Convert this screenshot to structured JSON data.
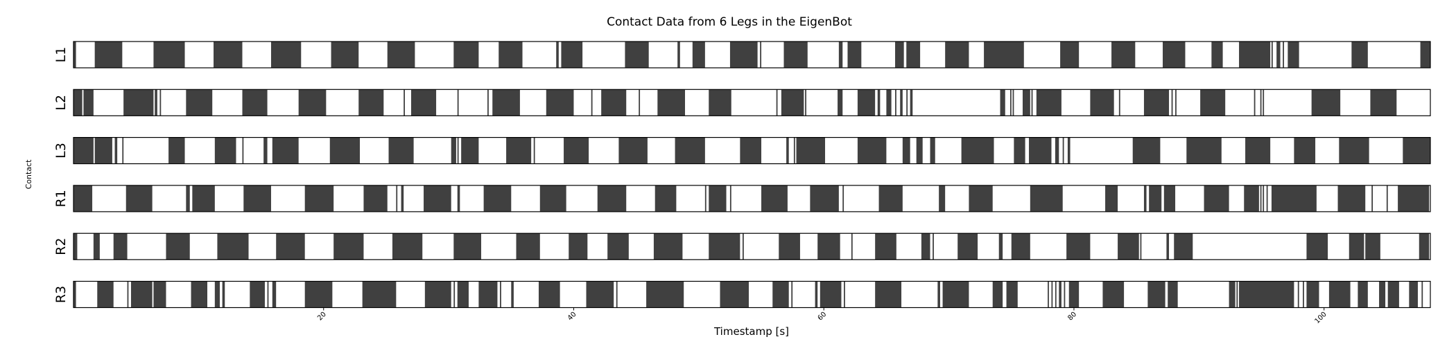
{
  "chart_data": {
    "type": "timeline",
    "title": "Contact Data from 6 Legs in the EigenBot",
    "xlabel": "Timestamp [s]",
    "ylabel": "Contact",
    "xlim": [
      0,
      108.5
    ],
    "xticks": [
      20,
      40,
      60,
      80,
      100
    ],
    "contact_color": "#404040",
    "series": [
      {
        "name": "L1",
        "contact_intervals": [
          [
            0,
            0.2
          ],
          [
            1.7,
            3.9
          ],
          [
            6.4,
            8.9
          ],
          [
            11.2,
            13.5
          ],
          [
            15.8,
            18.2
          ],
          [
            20.6,
            22.8
          ],
          [
            25.1,
            27.3
          ],
          [
            30.4,
            32.4
          ],
          [
            34.0,
            35.9
          ],
          [
            38.6,
            38.8
          ],
          [
            39.0,
            40.7
          ],
          [
            44.1,
            46.0
          ],
          [
            48.3,
            48.5
          ],
          [
            49.5,
            50.5
          ],
          [
            52.5,
            54.7
          ],
          [
            54.9,
            55.0
          ],
          [
            56.8,
            58.7
          ],
          [
            61.2,
            61.5
          ],
          [
            61.9,
            63.0
          ],
          [
            65.7,
            66.4
          ],
          [
            66.6,
            67.7
          ],
          [
            69.7,
            71.6
          ],
          [
            72.8,
            76.0
          ],
          [
            78.9,
            80.4
          ],
          [
            83.0,
            84.9
          ],
          [
            87.1,
            88.9
          ],
          [
            91.0,
            91.9
          ],
          [
            93.2,
            95.7
          ],
          [
            95.8,
            95.9
          ],
          [
            96.2,
            96.5
          ],
          [
            96.7,
            96.8
          ],
          [
            97.1,
            98.0
          ],
          [
            102.2,
            103.5
          ],
          [
            107.7,
            108.5
          ]
        ]
      },
      {
        "name": "L2",
        "contact_intervals": [
          [
            0,
            0.7
          ],
          [
            0.8,
            1.6
          ],
          [
            4.0,
            6.4
          ],
          [
            6.5,
            6.7
          ],
          [
            6.9,
            7.0
          ],
          [
            9.0,
            11.1
          ],
          [
            13.5,
            15.5
          ],
          [
            18.0,
            20.2
          ],
          [
            22.8,
            24.8
          ],
          [
            26.4,
            26.5
          ],
          [
            27.0,
            29.0
          ],
          [
            30.7,
            30.8
          ],
          [
            33.1,
            33.2
          ],
          [
            33.5,
            35.7
          ],
          [
            37.8,
            40.0
          ],
          [
            41.4,
            41.5
          ],
          [
            42.2,
            44.2
          ],
          [
            45.2,
            45.3
          ],
          [
            46.7,
            48.9
          ],
          [
            50.8,
            52.6
          ],
          [
            56.2,
            56.3
          ],
          [
            56.6,
            58.4
          ],
          [
            58.5,
            58.6
          ],
          [
            61.1,
            61.5
          ],
          [
            62.7,
            64.1
          ],
          [
            64.3,
            64.5
          ],
          [
            65.0,
            65.4
          ],
          [
            65.7,
            65.8
          ],
          [
            66.1,
            66.3
          ],
          [
            66.9,
            67.1
          ],
          [
            66.6,
            66.7
          ],
          [
            74.1,
            74.5
          ],
          [
            74.9,
            75.0
          ],
          [
            75.1,
            75.2
          ],
          [
            75.9,
            76.5
          ],
          [
            76.6,
            76.7
          ],
          [
            77.0,
            79.0
          ],
          [
            81.3,
            83.2
          ],
          [
            83.6,
            83.7
          ],
          [
            85.6,
            87.6
          ],
          [
            87.8,
            87.9
          ],
          [
            88.1,
            88.2
          ],
          [
            90.1,
            92.1
          ],
          [
            94.4,
            94.5
          ],
          [
            94.9,
            95.0
          ],
          [
            95.1,
            95.2
          ],
          [
            99.0,
            101.3
          ],
          [
            103.7,
            105.8
          ]
        ]
      },
      {
        "name": "L3",
        "contact_intervals": [
          [
            0,
            1.6
          ],
          [
            1.7,
            3.1
          ],
          [
            3.3,
            3.5
          ],
          [
            3.9,
            4.0
          ],
          [
            7.6,
            8.9
          ],
          [
            11.3,
            13.0
          ],
          [
            13.5,
            13.6
          ],
          [
            15.2,
            15.5
          ],
          [
            15.9,
            18.0
          ],
          [
            20.5,
            22.9
          ],
          [
            25.2,
            27.2
          ],
          [
            30.2,
            30.6
          ],
          [
            30.7,
            30.8
          ],
          [
            31.0,
            32.4
          ],
          [
            34.6,
            36.6
          ],
          [
            36.8,
            36.9
          ],
          [
            39.2,
            41.2
          ],
          [
            43.6,
            45.9
          ],
          [
            48.1,
            50.5
          ],
          [
            53.3,
            55.0
          ],
          [
            57.0,
            57.2
          ],
          [
            57.6,
            57.7
          ],
          [
            57.8,
            60.1
          ],
          [
            62.7,
            65.0
          ],
          [
            66.3,
            66.9
          ],
          [
            67.4,
            67.9
          ],
          [
            68.5,
            68.9
          ],
          [
            71.0,
            73.6
          ],
          [
            75.2,
            76.1
          ],
          [
            76.4,
            78.2
          ],
          [
            78.5,
            78.8
          ],
          [
            79.1,
            79.2
          ],
          [
            79.5,
            79.7
          ],
          [
            84.7,
            86.9
          ],
          [
            89.0,
            91.8
          ],
          [
            93.7,
            95.7
          ],
          [
            97.6,
            99.3
          ],
          [
            101.2,
            103.6
          ],
          [
            106.3,
            108.5
          ]
        ]
      },
      {
        "name": "R1",
        "contact_intervals": [
          [
            0,
            1.5
          ],
          [
            4.2,
            6.3
          ],
          [
            9.0,
            9.3
          ],
          [
            9.5,
            11.3
          ],
          [
            13.6,
            15.8
          ],
          [
            18.5,
            20.8
          ],
          [
            23.2,
            25.1
          ],
          [
            25.8,
            25.9
          ],
          [
            26.2,
            26.4
          ],
          [
            28.0,
            30.2
          ],
          [
            30.7,
            30.9
          ],
          [
            32.8,
            35.0
          ],
          [
            37.3,
            39.4
          ],
          [
            41.9,
            44.2
          ],
          [
            46.5,
            48.2
          ],
          [
            50.5,
            50.6
          ],
          [
            50.8,
            52.2
          ],
          [
            52.5,
            52.6
          ],
          [
            55.0,
            57.1
          ],
          [
            58.9,
            61.2
          ],
          [
            61.5,
            61.6
          ],
          [
            64.4,
            66.3
          ],
          [
            69.2,
            69.7
          ],
          [
            71.6,
            73.5
          ],
          [
            76.5,
            79.1
          ],
          [
            82.5,
            83.5
          ],
          [
            85.6,
            85.8
          ],
          [
            86.0,
            87.0
          ],
          [
            87.2,
            88.1
          ],
          [
            90.4,
            92.4
          ],
          [
            93.6,
            94.8
          ],
          [
            94.9,
            95.0
          ],
          [
            95.1,
            95.2
          ],
          [
            95.4,
            95.5
          ],
          [
            95.8,
            99.4
          ],
          [
            101.1,
            103.3
          ],
          [
            103.8,
            103.9
          ],
          [
            105.0,
            105.1
          ],
          [
            105.9,
            108.4
          ]
        ]
      },
      {
        "name": "R2",
        "contact_intervals": [
          [
            0,
            0.3
          ],
          [
            1.6,
            2.1
          ],
          [
            3.2,
            4.3
          ],
          [
            7.4,
            9.3
          ],
          [
            11.5,
            14.0
          ],
          [
            16.2,
            18.5
          ],
          [
            20.8,
            23.2
          ],
          [
            25.5,
            27.9
          ],
          [
            30.4,
            32.6
          ],
          [
            35.4,
            37.3
          ],
          [
            39.6,
            41.1
          ],
          [
            42.7,
            44.4
          ],
          [
            46.4,
            48.7
          ],
          [
            50.8,
            53.3
          ],
          [
            53.5,
            53.6
          ],
          [
            56.4,
            58.1
          ],
          [
            59.5,
            61.3
          ],
          [
            62.2,
            62.3
          ],
          [
            64.1,
            65.8
          ],
          [
            67.8,
            68.5
          ],
          [
            68.7,
            68.8
          ],
          [
            70.7,
            72.3
          ],
          [
            74.0,
            74.3
          ],
          [
            75.0,
            76.5
          ],
          [
            79.4,
            81.3
          ],
          [
            83.5,
            85.2
          ],
          [
            85.3,
            85.4
          ],
          [
            87.4,
            87.6
          ],
          [
            88.0,
            89.5
          ],
          [
            98.6,
            100.3
          ],
          [
            102.0,
            103.2
          ],
          [
            103.3,
            104.5
          ],
          [
            107.6,
            108.4
          ]
        ]
      },
      {
        "name": "R3",
        "contact_intervals": [
          [
            0,
            0.2
          ],
          [
            1.9,
            3.2
          ],
          [
            4.3,
            4.4
          ],
          [
            4.6,
            6.3
          ],
          [
            6.4,
            7.4
          ],
          [
            9.4,
            10.7
          ],
          [
            11.3,
            11.7
          ],
          [
            11.9,
            12.1
          ],
          [
            14.1,
            15.3
          ],
          [
            15.5,
            15.6
          ],
          [
            15.9,
            16.2
          ],
          [
            18.5,
            20.7
          ],
          [
            23.1,
            25.8
          ],
          [
            28.1,
            30.2
          ],
          [
            30.4,
            30.5
          ],
          [
            30.7,
            31.6
          ],
          [
            32.4,
            33.9
          ],
          [
            34.1,
            34.2
          ],
          [
            35.0,
            35.2
          ],
          [
            37.2,
            38.9
          ],
          [
            41.0,
            43.2
          ],
          [
            43.4,
            43.5
          ],
          [
            45.8,
            48.8
          ],
          [
            51.7,
            54.0
          ],
          [
            55.9,
            57.2
          ],
          [
            57.4,
            57.5
          ],
          [
            59.3,
            59.5
          ],
          [
            59.7,
            61.4
          ],
          [
            61.6,
            61.7
          ],
          [
            64.1,
            66.2
          ],
          [
            69.1,
            69.3
          ],
          [
            69.5,
            71.6
          ],
          [
            73.5,
            74.3
          ],
          [
            74.6,
            75.5
          ],
          [
            77.9,
            78.0
          ],
          [
            78.2,
            78.3
          ],
          [
            78.5,
            78.6
          ],
          [
            78.8,
            79.0
          ],
          [
            79.2,
            79.3
          ],
          [
            79.6,
            80.4
          ],
          [
            82.3,
            84.0
          ],
          [
            85.9,
            87.3
          ],
          [
            87.5,
            88.3
          ],
          [
            92.4,
            92.9
          ],
          [
            93.0,
            93.1
          ],
          [
            93.2,
            97.6
          ],
          [
            97.9,
            98.0
          ],
          [
            98.3,
            98.4
          ],
          [
            98.6,
            99.6
          ],
          [
            100.4,
            102.1
          ],
          [
            102.7,
            103.5
          ],
          [
            104.4,
            104.9
          ],
          [
            105.1,
            106.0
          ],
          [
            106.8,
            107.5
          ],
          [
            107.8,
            107.9
          ]
        ]
      }
    ]
  }
}
